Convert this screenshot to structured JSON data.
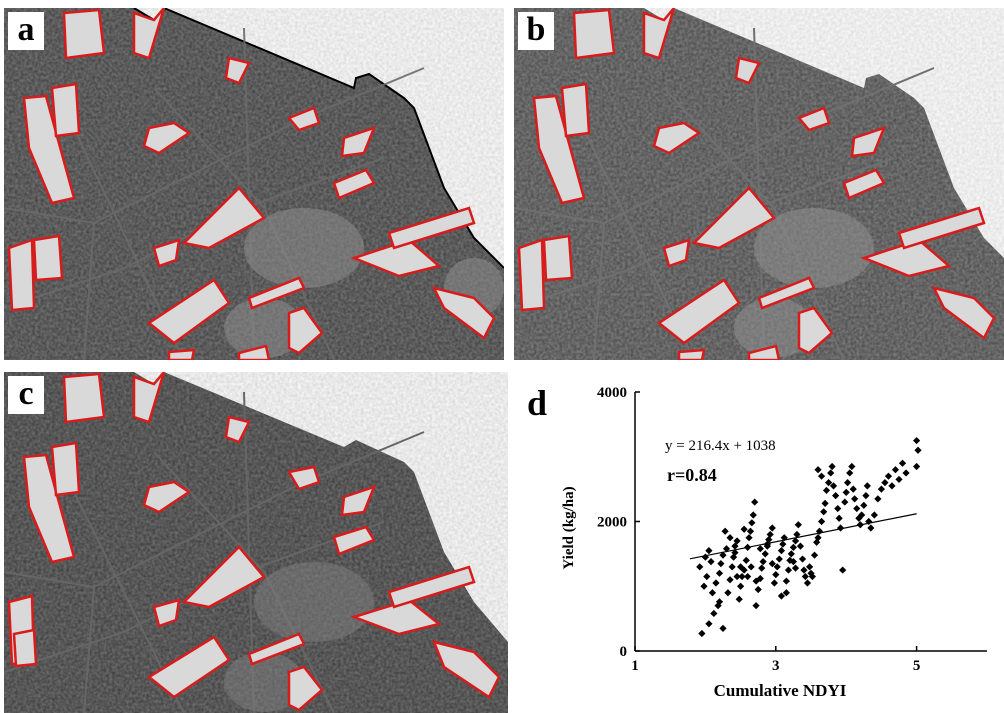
{
  "panels": [
    {
      "label": "a"
    },
    {
      "label": "b"
    },
    {
      "label": "c"
    }
  ],
  "chart_panel_label": "d",
  "chart_data": {
    "type": "scatter",
    "xlabel": "Cumulative NDYI",
    "ylabel": "Yield (kg/ha)",
    "xlim": [
      1,
      6
    ],
    "ylim": [
      0,
      4000
    ],
    "xticks": [
      "1",
      "3",
      "5"
    ],
    "yticks": [
      "0",
      "2000",
      "4000"
    ],
    "equation": "y = 216.4x + 1038",
    "r_label": "r=0.84",
    "fit": {
      "slope": 216.4,
      "intercept": 1038,
      "x_start": 1.78,
      "x_end": 5.0
    },
    "colors": {
      "points": "#000000",
      "field_outline": "#d81c1c"
    },
    "points": [
      [
        1.95,
        270
      ],
      [
        2.05,
        420
      ],
      [
        2.12,
        580
      ],
      [
        2.18,
        700
      ],
      [
        2.2,
        760
      ],
      [
        2.25,
        350
      ],
      [
        2.1,
        900
      ],
      [
        2.15,
        1050
      ],
      [
        2.2,
        1200
      ],
      [
        2.22,
        1350
      ],
      [
        2.25,
        1480
      ],
      [
        2.3,
        1580
      ],
      [
        2.32,
        900
      ],
      [
        2.35,
        1100
      ],
      [
        2.38,
        1300
      ],
      [
        2.4,
        1450
      ],
      [
        2.42,
        1520
      ],
      [
        2.45,
        1700
      ],
      [
        2.48,
        800
      ],
      [
        2.5,
        1000
      ],
      [
        2.52,
        1150
      ],
      [
        2.55,
        1250
      ],
      [
        2.58,
        1400
      ],
      [
        2.6,
        1600
      ],
      [
        2.62,
        1750
      ],
      [
        2.64,
        1850
      ],
      [
        2.66,
        1980
      ],
      [
        2.68,
        2100
      ],
      [
        2.7,
        2300
      ],
      [
        2.72,
        700
      ],
      [
        2.75,
        950
      ],
      [
        2.78,
        1120
      ],
      [
        2.8,
        1280
      ],
      [
        2.82,
        1380
      ],
      [
        2.85,
        1500
      ],
      [
        2.88,
        1620
      ],
      [
        2.9,
        1720
      ],
      [
        2.92,
        1800
      ],
      [
        2.95,
        1900
      ],
      [
        2.98,
        1050
      ],
      [
        3.0,
        1180
      ],
      [
        3.02,
        1300
      ],
      [
        3.05,
        1420
      ],
      [
        3.08,
        1550
      ],
      [
        3.1,
        1650
      ],
      [
        3.12,
        1750
      ],
      [
        3.15,
        900
      ],
      [
        3.18,
        1250
      ],
      [
        3.2,
        1400
      ],
      [
        3.22,
        1500
      ],
      [
        3.25,
        1600
      ],
      [
        3.28,
        1700
      ],
      [
        3.3,
        1800
      ],
      [
        3.32,
        1950
      ],
      [
        3.35,
        1620
      ],
      [
        3.38,
        1420
      ],
      [
        3.4,
        1250
      ],
      [
        3.42,
        1150
      ],
      [
        3.45,
        1050
      ],
      [
        3.48,
        1300
      ],
      [
        3.5,
        1200
      ],
      [
        3.52,
        1150
      ],
      [
        3.55,
        1480
      ],
      [
        3.58,
        1680
      ],
      [
        3.6,
        1750
      ],
      [
        3.62,
        1850
      ],
      [
        3.65,
        2000
      ],
      [
        3.68,
        2150
      ],
      [
        3.7,
        2280
      ],
      [
        3.72,
        2480
      ],
      [
        3.75,
        2600
      ],
      [
        3.78,
        2750
      ],
      [
        3.8,
        2850
      ],
      [
        3.6,
        2800
      ],
      [
        3.65,
        2700
      ],
      [
        3.82,
        2550
      ],
      [
        3.85,
        2400
      ],
      [
        3.88,
        2200
      ],
      [
        3.9,
        2050
      ],
      [
        3.92,
        1900
      ],
      [
        3.95,
        1250
      ],
      [
        3.98,
        2300
      ],
      [
        4.0,
        2450
      ],
      [
        4.02,
        2600
      ],
      [
        4.05,
        2750
      ],
      [
        4.08,
        2850
      ],
      [
        4.1,
        2500
      ],
      [
        4.12,
        2350
      ],
      [
        4.15,
        2200
      ],
      [
        4.18,
        2050
      ],
      [
        4.2,
        1950
      ],
      [
        4.22,
        2100
      ],
      [
        4.25,
        2250
      ],
      [
        4.28,
        2400
      ],
      [
        4.3,
        2550
      ],
      [
        4.32,
        2000
      ],
      [
        4.35,
        1900
      ],
      [
        4.4,
        2100
      ],
      [
        4.45,
        2350
      ],
      [
        4.5,
        2500
      ],
      [
        4.55,
        2600
      ],
      [
        4.6,
        2700
      ],
      [
        4.65,
        2550
      ],
      [
        4.7,
        2800
      ],
      [
        4.75,
        2650
      ],
      [
        4.8,
        2900
      ],
      [
        4.85,
        2750
      ],
      [
        5.0,
        3250
      ],
      [
        5.02,
        3100
      ],
      [
        5.0,
        2850
      ],
      [
        2.0,
        1450
      ],
      [
        2.05,
        1550
      ],
      [
        1.92,
        1300
      ],
      [
        2.02,
        1150
      ],
      [
        1.98,
        1000
      ],
      [
        2.08,
        1380
      ],
      [
        2.28,
        1850
      ],
      [
        2.55,
        1880
      ],
      [
        2.42,
        1620
      ],
      [
        2.72,
        1080
      ],
      [
        3.08,
        850
      ],
      [
        2.95,
        1350
      ],
      [
        3.15,
        1080
      ],
      [
        2.65,
        1300
      ],
      [
        2.35,
        1750
      ],
      [
        2.5,
        1300
      ],
      [
        2.6,
        1150
      ],
      [
        3.25,
        1380
      ],
      [
        3.28,
        1280
      ],
      [
        2.88,
        1650
      ],
      [
        2.78,
        1580
      ],
      [
        2.45,
        1150
      ]
    ]
  }
}
